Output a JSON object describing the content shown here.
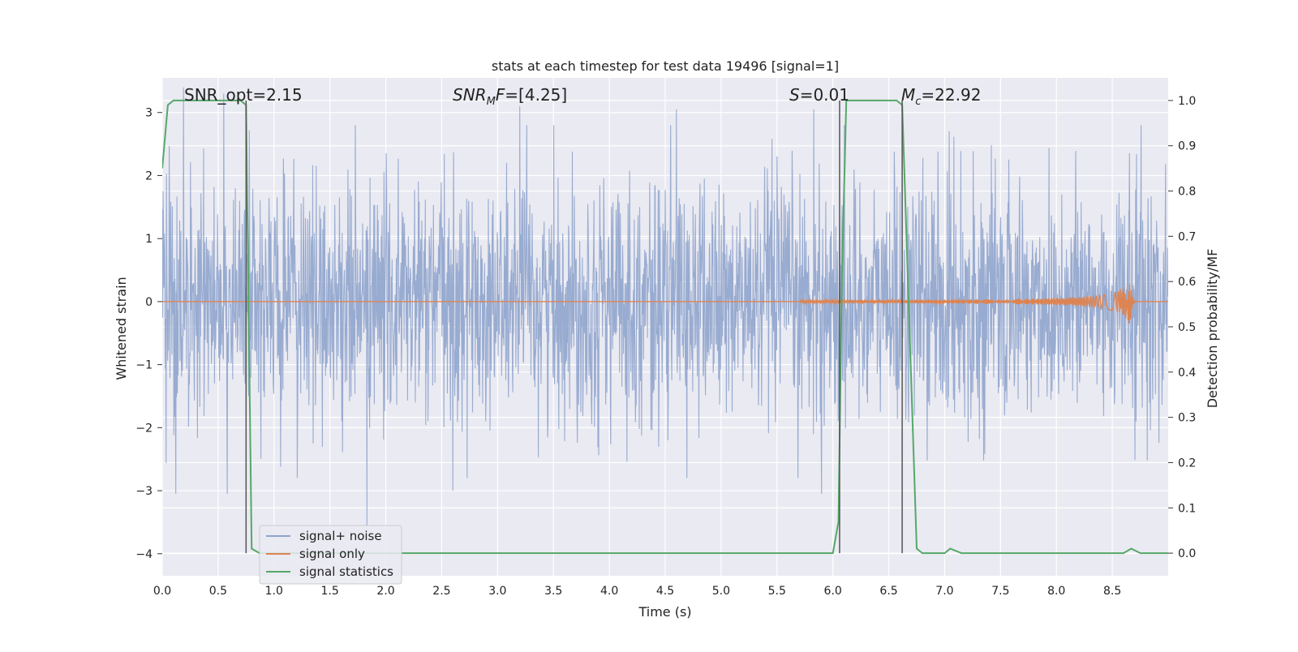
{
  "chart_data": {
    "type": "line",
    "title": "stats at each timestep for test data 19496 [signal=1]",
    "xlabel": "Time (s)",
    "ylabel": "Whitened strain",
    "y2label": "Detection probability/MF",
    "xlim": [
      0.0,
      9.0
    ],
    "ylim": [
      -4.35,
      3.55
    ],
    "y2lim": [
      -0.05,
      1.05
    ],
    "x_ticks": [
      "0.0",
      "0.5",
      "1.0",
      "1.5",
      "2.0",
      "2.5",
      "3.0",
      "3.5",
      "4.0",
      "4.5",
      "5.0",
      "5.5",
      "6.0",
      "6.5",
      "7.0",
      "7.5",
      "8.0",
      "8.5"
    ],
    "y_ticks": [
      "3",
      "2",
      "1",
      "0",
      "−1",
      "−2",
      "−3",
      "−4"
    ],
    "y2_ticks": [
      "1.0",
      "0.9",
      "0.8",
      "0.7",
      "0.6",
      "0.5",
      "0.4",
      "0.3",
      "0.2",
      "0.1",
      "0.0"
    ],
    "grid": true,
    "legend_position": "lower-left",
    "legend": [
      {
        "label": "signal+ noise",
        "color": "#8fa4cc"
      },
      {
        "label": "signal only",
        "color": "#dd8452"
      },
      {
        "label": "signal statistics",
        "color": "#55a868"
      }
    ],
    "annotations": {
      "snr_opt": "SNR_opt=2.15",
      "snr_mf_italic": "SNR",
      "snr_mf_sub": "M",
      "snr_mf_italic2": "F",
      "snr_mf_rest": "=[4.25]",
      "s_italic": "S",
      "s_rest": "=0.01",
      "mc_italic": "M",
      "mc_sub": "c",
      "mc_rest": "=22.92"
    },
    "vertical_lines_x": [
      0.75,
      6.06,
      6.62
    ],
    "series": [
      {
        "name": "signal+ noise",
        "axis": "left",
        "description_ref": "noise_band",
        "noise_std": 0.95,
        "t_range": [
          0.0,
          9.0
        ],
        "extreme_peaks": [
          {
            "x": 0.19,
            "y": 3.4
          },
          {
            "x": 0.55,
            "y": 3.3
          },
          {
            "x": 3.2,
            "y": 3.1
          },
          {
            "x": 4.6,
            "y": 3.05
          },
          {
            "x": 5.83,
            "y": 3.05
          },
          {
            "x": 0.12,
            "y": -3.05
          },
          {
            "x": 0.58,
            "y": -3.05
          },
          {
            "x": 1.83,
            "y": -3.55
          },
          {
            "x": 2.6,
            "y": -3.0
          },
          {
            "x": 5.9,
            "y": -3.05
          }
        ]
      },
      {
        "name": "signal only",
        "axis": "left",
        "chirp_start": 5.7,
        "merger_time": 8.66,
        "peak_amplitude": 0.42
      },
      {
        "name": "signal statistics",
        "axis": "right",
        "x": [
          0.0,
          0.05,
          0.1,
          0.7,
          0.75,
          0.8,
          0.87,
          6.0,
          6.05,
          6.08,
          6.12,
          6.57,
          6.62,
          6.75,
          6.8,
          7.0,
          7.05,
          7.15,
          8.6,
          8.67,
          8.75,
          9.0
        ],
        "y": [
          0.85,
          0.99,
          1.0,
          1.0,
          0.99,
          0.01,
          0.0,
          0.0,
          0.07,
          0.6,
          1.0,
          1.0,
          0.99,
          0.01,
          0.0,
          0.0,
          0.01,
          0.0,
          0.0,
          0.01,
          0.0,
          0.0
        ]
      }
    ]
  }
}
